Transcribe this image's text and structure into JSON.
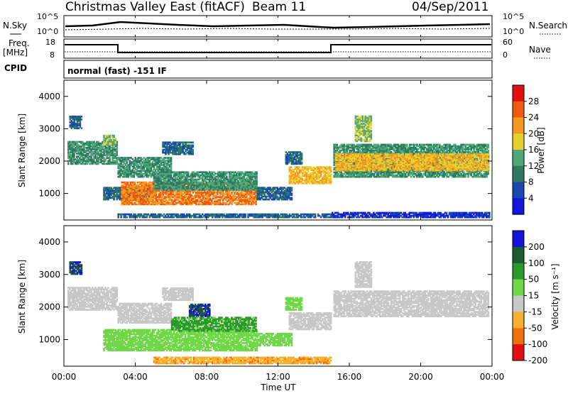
{
  "header": {
    "title": "Christmas Valley East (fitACF)",
    "beam": "Beam 11",
    "date": "04/Sep/2011"
  },
  "top_panels": {
    "nsky_label": "N.Sky",
    "nsky_ticks": [
      "10^5",
      "10^0"
    ],
    "nsearch_label": "N.Search",
    "nsearch_ticks": [
      "10^5",
      "10^0"
    ],
    "freq_label": "Freq.",
    "freq_unit": "[MHz]",
    "freq_ticks": [
      "18",
      "8"
    ],
    "nave_label": "Nave",
    "nave_ticks": [
      "60",
      "0"
    ],
    "cpid_label": "CPID",
    "cpid_value": "normal (fast) -151 IF"
  },
  "chart_data": [
    {
      "type": "heatmap",
      "name": "power",
      "ylabel": "Slant Range [km]",
      "yticks": [
        "4000",
        "3000",
        "2000",
        "1000"
      ],
      "ylim": [
        180,
        4500
      ],
      "xlim": [
        0,
        24
      ],
      "colorbar_label": "Power [dB]",
      "colorbar_ticks": [
        "28",
        "24",
        "20",
        "16",
        "12",
        "8",
        "4"
      ],
      "colorbar_colors": [
        "#e01010",
        "#f05a10",
        "#f59a20",
        "#e6d030",
        "#50a878",
        "#2c7a62",
        "#1848b0",
        "#1414e0"
      ],
      "bands": [
        {
          "t0": 0.2,
          "t1": 3.0,
          "r0": 1900,
          "r1": 2600,
          "level": 12
        },
        {
          "t0": 0.3,
          "t1": 1.0,
          "r0": 3000,
          "r1": 3400,
          "level": 8
        },
        {
          "t0": 2.2,
          "t1": 2.9,
          "r0": 2500,
          "r1": 2800,
          "level": 16
        },
        {
          "t0": 3.0,
          "t1": 6.0,
          "r0": 1500,
          "r1": 2100,
          "level": 12
        },
        {
          "t0": 5.5,
          "t1": 7.2,
          "r0": 2200,
          "r1": 2600,
          "level": 8
        },
        {
          "t0": 2.2,
          "t1": 5.0,
          "r0": 800,
          "r1": 1200,
          "level": 8
        },
        {
          "t0": 3.2,
          "t1": 10.8,
          "r0": 650,
          "r1": 1350,
          "level": 24
        },
        {
          "t0": 5.0,
          "t1": 10.8,
          "r0": 1100,
          "r1": 1650,
          "level": 12
        },
        {
          "t0": 10.8,
          "t1": 12.8,
          "r0": 800,
          "r1": 1200,
          "level": 8
        },
        {
          "t0": 12.6,
          "t1": 15.0,
          "r0": 1300,
          "r1": 1800,
          "level": 20
        },
        {
          "t0": 12.4,
          "t1": 13.3,
          "r0": 1900,
          "r1": 2300,
          "level": 8
        },
        {
          "t0": 15.1,
          "t1": 23.8,
          "r0": 1500,
          "r1": 2500,
          "level": 12
        },
        {
          "t0": 15.2,
          "t1": 23.8,
          "r0": 1700,
          "r1": 2200,
          "level": 20
        },
        {
          "t0": 16.3,
          "t1": 17.2,
          "r0": 2600,
          "r1": 3400,
          "level": 16
        },
        {
          "t0": 3.0,
          "t1": 15.0,
          "r0": 250,
          "r1": 350,
          "level": 8
        },
        {
          "t0": 15.0,
          "t1": 23.8,
          "r0": 250,
          "r1": 400,
          "level": 4
        }
      ]
    },
    {
      "type": "heatmap",
      "name": "velocity",
      "ylabel": "Slant Range [km]",
      "yticks": [
        "4000",
        "3000",
        "2000",
        "1000"
      ],
      "ylim": [
        180,
        4500
      ],
      "xlim": [
        0,
        24
      ],
      "xticks": [
        "00:00",
        "04:00",
        "08:00",
        "12:00",
        "16:00",
        "20:00",
        "00:00"
      ],
      "xlabel": "Time UT",
      "colorbar_label": "Velocity [m s⁻¹]",
      "colorbar_ticks": [
        "200",
        "100",
        "50",
        "15",
        "-15",
        "-50",
        "-100",
        "-200"
      ],
      "colorbar_colors": [
        "#1414d8",
        "#1a5c34",
        "#2a9a2a",
        "#70d848",
        "#c8c8c8",
        "#f5b030",
        "#f07010",
        "#e01010"
      ],
      "bands": [
        {
          "t0": 0.2,
          "t1": 3.0,
          "r0": 1900,
          "r1": 2600,
          "level": 0
        },
        {
          "t0": 0.3,
          "t1": 1.0,
          "r0": 3000,
          "r1": 3400,
          "level": 200
        },
        {
          "t0": 3.0,
          "t1": 6.0,
          "r0": 1500,
          "r1": 2100,
          "level": 0
        },
        {
          "t0": 5.5,
          "t1": 7.2,
          "r0": 2200,
          "r1": 2600,
          "level": 0
        },
        {
          "t0": 7.0,
          "t1": 8.2,
          "r0": 1700,
          "r1": 2100,
          "level": 200
        },
        {
          "t0": 2.2,
          "t1": 10.8,
          "r0": 650,
          "r1": 1300,
          "level": 30
        },
        {
          "t0": 6.0,
          "t1": 10.8,
          "r0": 1250,
          "r1": 1700,
          "level": 60
        },
        {
          "t0": 10.8,
          "t1": 12.8,
          "r0": 800,
          "r1": 1200,
          "level": 30
        },
        {
          "t0": 12.6,
          "t1": 15.0,
          "r0": 1300,
          "r1": 1800,
          "level": 0
        },
        {
          "t0": 12.4,
          "t1": 13.3,
          "r0": 1900,
          "r1": 2300,
          "level": 30
        },
        {
          "t0": 15.1,
          "t1": 23.8,
          "r0": 1700,
          "r1": 2500,
          "level": 0
        },
        {
          "t0": 16.3,
          "t1": 17.2,
          "r0": 2600,
          "r1": 3400,
          "level": 0
        },
        {
          "t0": 5.0,
          "t1": 15.0,
          "r0": 250,
          "r1": 450,
          "level": -40
        }
      ]
    }
  ]
}
